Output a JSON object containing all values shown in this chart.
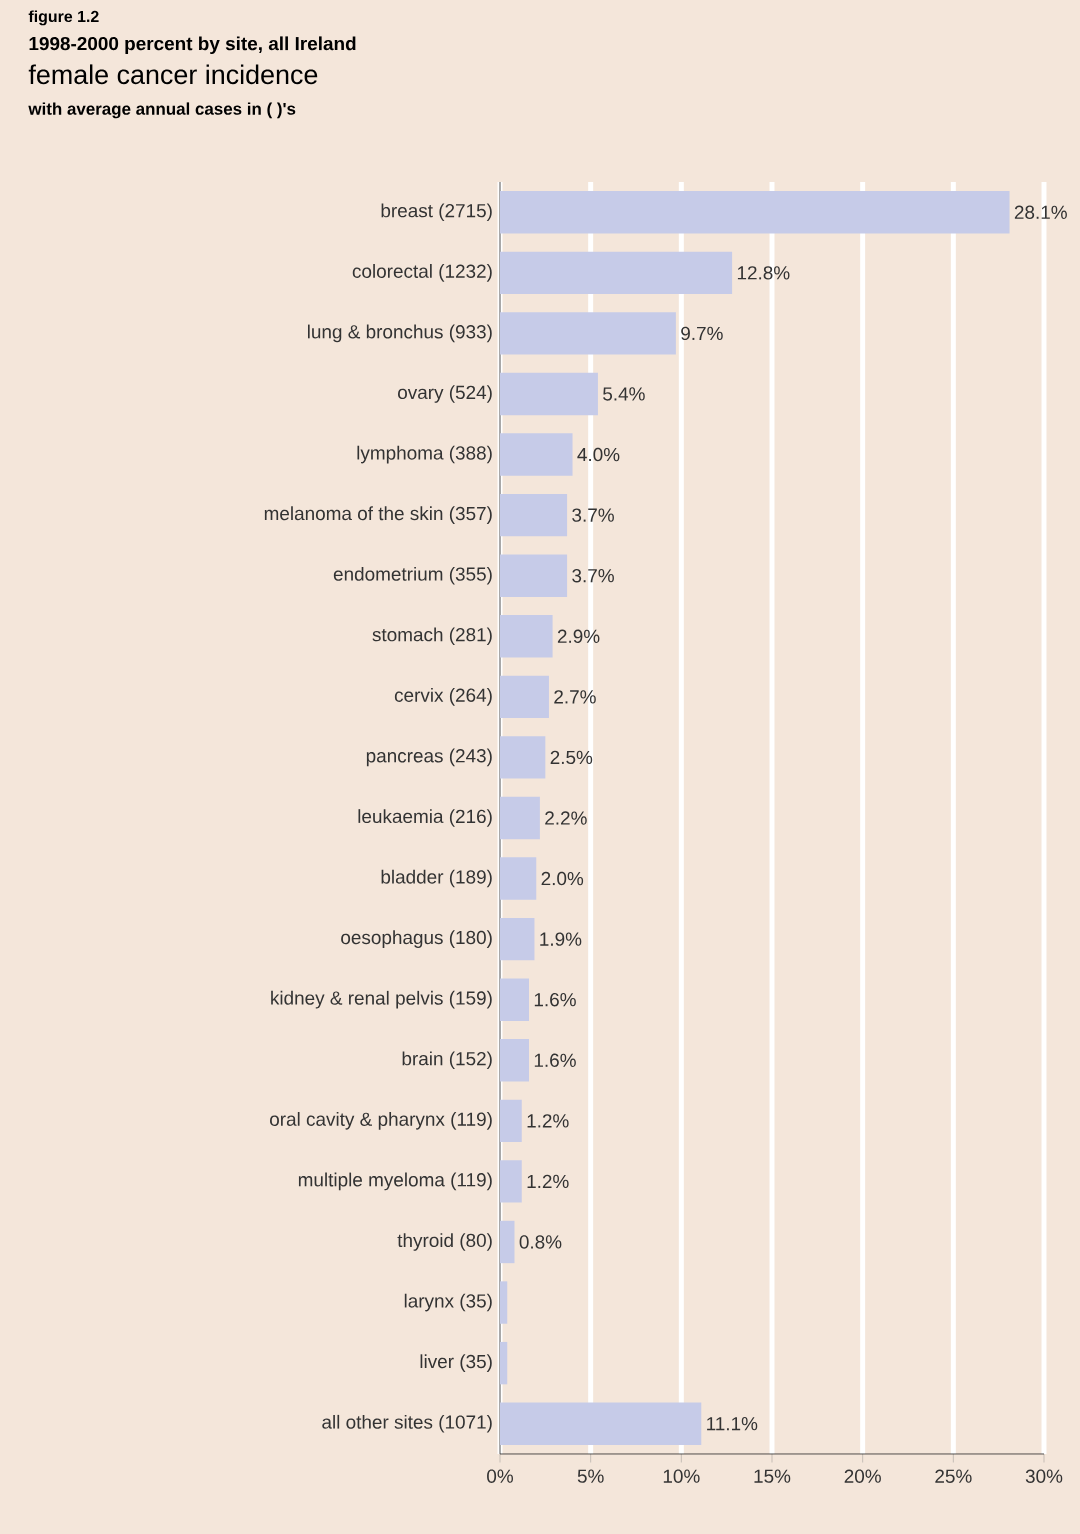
{
  "chart_data": {
    "type": "bar",
    "orientation": "horizontal",
    "title": "female cancer incidence",
    "subtitle": "1998-2000 percent by site, all Ireland",
    "annotations": [
      "figure 1.2",
      "with average annual cases in ( )'s"
    ],
    "categories": [
      "breast (2715)",
      "colorectal (1232)",
      "lung & bronchus (933)",
      "ovary (524)",
      "lymphoma (388)",
      "melanoma of the skin (357)",
      "endometrium (355)",
      "stomach (281)",
      "cervix (264)",
      "pancreas (243)",
      "leukaemia (216)",
      "bladder (189)",
      "oesophagus (180)",
      "kidney & renal pelvis (159)",
      "brain (152)",
      "oral cavity & pharynx (119)",
      "multiple myeloma (119)",
      "thyroid (80)",
      "larynx (35)",
      "liver (35)",
      "all other sites (1071)"
    ],
    "values": [
      28.1,
      12.8,
      9.7,
      5.4,
      4.0,
      3.7,
      3.7,
      2.9,
      2.7,
      2.5,
      2.2,
      2.0,
      1.9,
      1.6,
      1.6,
      1.2,
      1.2,
      0.8,
      0.4,
      0.4,
      11.1
    ],
    "value_labels": [
      "28.1%",
      "12.8%",
      "9.7%",
      "5.4%",
      "4.0%",
      "3.7%",
      "3.7%",
      "2.9%",
      "2.7%",
      "2.5%",
      "2.2%",
      "2.0%",
      "1.9%",
      "1.6%",
      "1.6%",
      "1.2%",
      "1.2%",
      "0.8%",
      null,
      null,
      "11.1%"
    ],
    "color": "#c6cbe8",
    "xlim": [
      0,
      30
    ],
    "xticks": [
      {
        "value": 0,
        "label": "0%"
      },
      {
        "value": 5,
        "label": "5%"
      },
      {
        "value": 10,
        "label": "10%"
      },
      {
        "value": 15,
        "label": "15%"
      },
      {
        "value": 20,
        "label": "20%"
      },
      {
        "value": 25,
        "label": "25%"
      },
      {
        "value": 30,
        "label": "30%"
      }
    ],
    "grid": "x"
  }
}
